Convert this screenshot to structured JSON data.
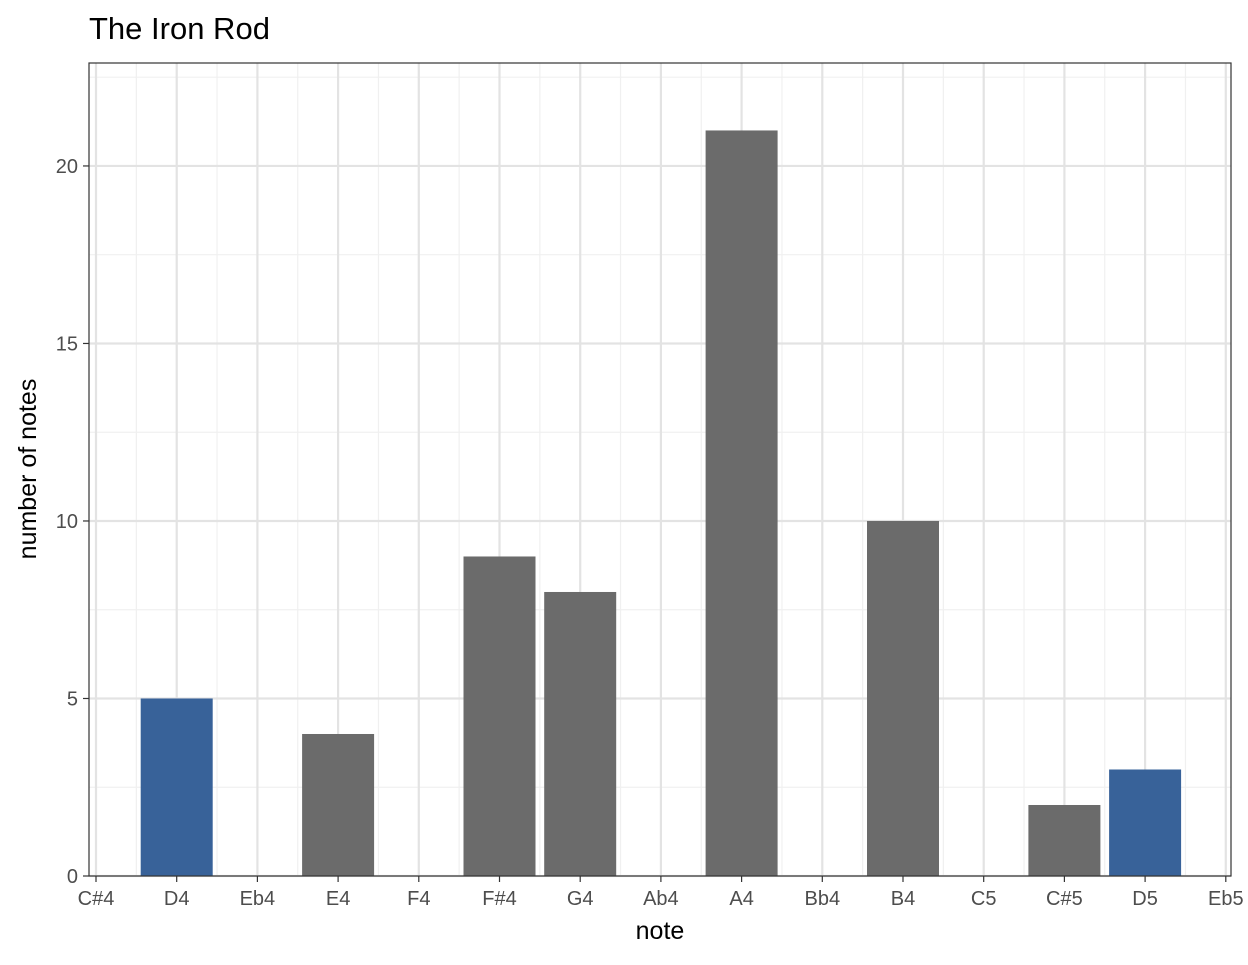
{
  "chart_data": {
    "type": "bar",
    "title": "The Iron Rod",
    "xlabel": "note",
    "ylabel": "number of notes",
    "categories": [
      "C#4",
      "D4",
      "Eb4",
      "E4",
      "F4",
      "F#4",
      "G4",
      "Ab4",
      "A4",
      "Bb4",
      "B4",
      "C5",
      "C#5",
      "D5",
      "Eb5"
    ],
    "values": [
      0,
      5,
      0,
      4,
      0,
      9,
      8,
      0,
      21,
      0,
      10,
      0,
      2,
      3,
      0
    ],
    "highlight": [
      false,
      true,
      false,
      false,
      false,
      false,
      false,
      false,
      false,
      false,
      false,
      false,
      false,
      true,
      false
    ],
    "yticks": [
      0,
      5,
      10,
      15,
      20
    ],
    "ylim": [
      0,
      22.9
    ],
    "grid": true,
    "legend": "none",
    "colors": {
      "bar": "#6b6b6b",
      "highlight": "#386299",
      "grid_major": "#e3e3e3",
      "grid_minor": "#f0f0f0",
      "panel_border": "#333333"
    }
  }
}
